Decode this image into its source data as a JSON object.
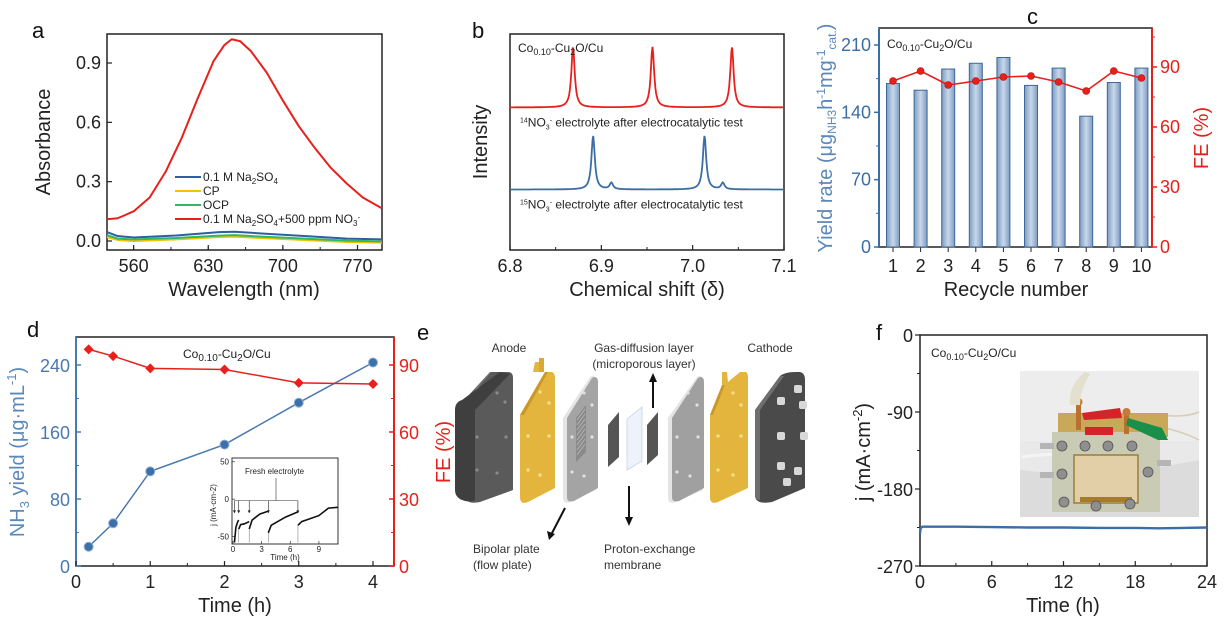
{
  "figure": {
    "panel_labels": [
      "a",
      "b",
      "c",
      "d",
      "e",
      "f"
    ],
    "sample_label": {
      "base": "Co",
      "sub1": "0.10",
      "mid": "-Cu",
      "sub2": "2",
      "tail": "O/Cu"
    }
  },
  "chart_data": [
    {
      "id": "a",
      "type": "line",
      "xlabel": "Wavelength (nm)",
      "ylabel": "Absorbance",
      "xlim": [
        535,
        793
      ],
      "ylim": [
        -0.04,
        1.05
      ],
      "xticks": [
        560,
        630,
        700,
        770
      ],
      "yticks": [
        0.0,
        0.3,
        0.6,
        0.9
      ],
      "ytick_labels": [
        "0.0",
        "0.3",
        "0.6",
        "0.9"
      ],
      "legend_position": "lower-center",
      "series": [
        {
          "name": "0.1 M Na2SO4",
          "legend": [
            "0.1 M Na",
            "2",
            "SO",
            "4",
            ""
          ],
          "color": "#2f5f9f",
          "x": [
            535,
            545,
            560,
            600,
            640,
            655,
            680,
            720,
            760,
            793
          ],
          "y": [
            0.045,
            0.025,
            0.018,
            0.028,
            0.045,
            0.047,
            0.038,
            0.025,
            0.012,
            0.008
          ]
        },
        {
          "name": "CP",
          "legend": [
            "CP"
          ],
          "color": "#f5c000",
          "x": [
            535,
            545,
            560,
            600,
            640,
            655,
            680,
            720,
            760,
            793
          ],
          "y": [
            0.02,
            0.005,
            0.0,
            0.008,
            0.02,
            0.022,
            0.015,
            0.005,
            -0.005,
            -0.008
          ]
        },
        {
          "name": "OCP",
          "legend": [
            "OCP"
          ],
          "color": "#2fb86a",
          "x": [
            535,
            545,
            560,
            600,
            640,
            655,
            680,
            720,
            760,
            793
          ],
          "y": [
            0.03,
            0.012,
            0.008,
            0.015,
            0.027,
            0.03,
            0.022,
            0.012,
            0.002,
            -0.002
          ]
        },
        {
          "name": "0.1 M Na2SO4+500 ppm NO3-",
          "legend": [
            "0.1 M Na",
            "2",
            "SO",
            "4",
            "+500 ppm NO",
            "3",
            "-"
          ],
          "color": "#e8201c",
          "x": [
            535,
            545,
            560,
            575,
            590,
            605,
            620,
            635,
            645,
            652,
            660,
            670,
            685,
            700,
            715,
            730,
            745,
            760,
            775,
            793
          ],
          "y": [
            0.11,
            0.115,
            0.15,
            0.22,
            0.35,
            0.52,
            0.72,
            0.91,
            0.99,
            1.02,
            1.01,
            0.96,
            0.85,
            0.71,
            0.58,
            0.47,
            0.37,
            0.29,
            0.22,
            0.165
          ]
        }
      ]
    },
    {
      "id": "b",
      "type": "line",
      "xlabel": "Chemical shift (δ)",
      "ylabel": "Intensity",
      "xlim": [
        6.8,
        7.1
      ],
      "xticks": [
        6.8,
        6.9,
        7.0,
        7.1
      ],
      "xtick_labels": [
        "6.8",
        "6.9",
        "7.0",
        "7.1"
      ],
      "series": [
        {
          "name": "14NO3- electrolyte after electrocatalytic test",
          "color": "#e8201c",
          "label": {
            "sup": "14",
            "a": "NO",
            "sub": "3",
            "sup2": "-",
            "b": " electrolyte after electrocatalytic test"
          },
          "baseline": 0.66,
          "peaks": [
            {
              "x": 6.869,
              "h": 0.28
            },
            {
              "x": 6.956,
              "h": 0.28
            },
            {
              "x": 7.043,
              "h": 0.28
            }
          ]
        },
        {
          "name": "15NO3- electrolyte after electrocatalytic test",
          "color": "#3b6ea5",
          "label": {
            "sup": "15",
            "a": "NO",
            "sub": "3",
            "sup2": "-",
            "b": " electrolyte after electrocatalytic test"
          },
          "baseline": 0.28,
          "peaks": [
            {
              "x": 6.891,
              "h": 0.25
            },
            {
              "x": 6.911,
              "h": 0.03
            },
            {
              "x": 7.013,
              "h": 0.25
            },
            {
              "x": 7.033,
              "h": 0.03
            }
          ]
        }
      ]
    },
    {
      "id": "c",
      "type": "bar",
      "xlabel": "Recycle number",
      "ylabel": "Yield rate (μg_NH3 h^-1 mg^-1_cat.)",
      "ylabel_parts": [
        "Yield rate (μg",
        "NH3",
        "h",
        "-1",
        "mg",
        "-1",
        "cat.",
        ")"
      ],
      "y2label": "FE (%)",
      "categories": [
        "1",
        "2",
        "3",
        "4",
        "5",
        "6",
        "7",
        "8",
        "9",
        "10"
      ],
      "ylim": [
        0,
        210
      ],
      "yticks": [
        0,
        70,
        140,
        210
      ],
      "y2lim": [
        0,
        108
      ],
      "y2ticks": [
        0,
        30,
        60,
        90
      ],
      "series": [
        {
          "name": "Yield rate",
          "type": "bar",
          "color": "#5b82b0",
          "values": [
            170,
            163,
            185,
            191,
            197,
            168,
            186,
            136,
            171,
            186
          ]
        },
        {
          "name": "FE",
          "type": "line",
          "color": "#e8201c",
          "values": [
            83,
            88,
            81,
            83,
            85,
            85.5,
            82.5,
            78,
            88,
            84.5
          ]
        }
      ]
    },
    {
      "id": "d",
      "type": "line",
      "xlabel": "Time (h)",
      "ylabel": "NH3 yield (μg·mL-1)",
      "ylabel_parts": [
        "NH",
        "3",
        " yield (μg·mL",
        "-1",
        ")"
      ],
      "y2label": "FE (%)",
      "xlim": [
        0,
        4.1
      ],
      "xticks": [
        0,
        1,
        2,
        3,
        4
      ],
      "ylim": [
        0,
        265
      ],
      "yticks": [
        0,
        80,
        160,
        240
      ],
      "y2lim": [
        0,
        99
      ],
      "y2ticks": [
        0,
        30,
        60,
        90
      ],
      "series": [
        {
          "name": "NH3 yield",
          "color": "#4a78b0",
          "marker": "circle",
          "x": [
            0.17,
            0.5,
            1,
            2,
            3,
            4
          ],
          "y": [
            23,
            51,
            113,
            145,
            195,
            243
          ]
        },
        {
          "name": "FE",
          "color": "#e8201c",
          "marker": "diamond",
          "x": [
            0.17,
            0.5,
            1,
            2,
            3,
            4
          ],
          "y": [
            97,
            94,
            88.5,
            88,
            82,
            81.5
          ]
        }
      ],
      "inset": {
        "xlabel": "Time (h)",
        "ylabel": "j (mA·cm-2)",
        "xlim": [
          0,
          11
        ],
        "xticks": [
          0,
          3,
          6,
          9
        ],
        "ylim": [
          -60,
          55
        ],
        "yticks": [
          -50,
          0,
          50
        ],
        "annotation": "Fresh electrolyte",
        "refresh_times": [
          0.15,
          0.6,
          1.7,
          3.7,
          6.8
        ],
        "segments": [
          {
            "t": [
              0.15,
              0.3,
              0.5,
              0.6
            ],
            "j": [
              -58,
              -38,
              -30,
              -28
            ]
          },
          {
            "t": [
              0.6,
              0.8,
              1.2,
              1.7
            ],
            "j": [
              -40,
              -34,
              -33,
              -30
            ]
          },
          {
            "t": [
              1.7,
              2.0,
              2.8,
              3.7
            ],
            "j": [
              -40,
              -28,
              -20,
              -16
            ]
          },
          {
            "t": [
              3.7,
              4.0,
              5.5,
              6.8
            ],
            "j": [
              -45,
              -35,
              -24,
              -17
            ]
          },
          {
            "t": [
              6.8,
              7.2,
              9.0,
              10.0,
              11.0
            ],
            "j": [
              -35,
              -30,
              -22,
              -12,
              -11
            ]
          }
        ]
      }
    },
    {
      "id": "f",
      "type": "line",
      "xlabel": "Time (h)",
      "ylabel": "j (mA·cm-2)",
      "ylabel_parts": [
        "j (mA·cm",
        "-2",
        ")"
      ],
      "xlim": [
        0,
        24
      ],
      "xticks": [
        0,
        6,
        12,
        18,
        24
      ],
      "ylim": [
        -270,
        0
      ],
      "yticks": [
        0,
        -90,
        -180,
        -270
      ],
      "series": [
        {
          "name": "current density",
          "color": "#3b6ea5",
          "x": [
            0,
            0.05,
            0.2,
            3,
            6,
            9,
            12,
            15,
            18,
            20,
            22,
            24
          ],
          "y": [
            -232,
            -226,
            -224,
            -224,
            -224.5,
            -225,
            -225,
            -225.5,
            -225.5,
            -226,
            -225.5,
            -225
          ]
        }
      ],
      "inset_photo": "assembled electrolyzer cell with red, green and white alligator clips"
    }
  ],
  "diagram_e": {
    "labels": {
      "anode": "Anode",
      "gdl_line1": "Gas-diffusion layer",
      "gdl_line2": "(microporous layer)",
      "cathode": "Cathode",
      "bipolar_line1": "Bipolar plate",
      "bipolar_line2": "(flow plate)",
      "pem_line1": "Proton-exchange",
      "pem_line2": "membrane"
    },
    "colors": {
      "end_plate": "#4a4a4a",
      "current_collector": "#e0b43a",
      "bipolar": "#9a9a9a",
      "membrane": "#eef2fa"
    }
  }
}
